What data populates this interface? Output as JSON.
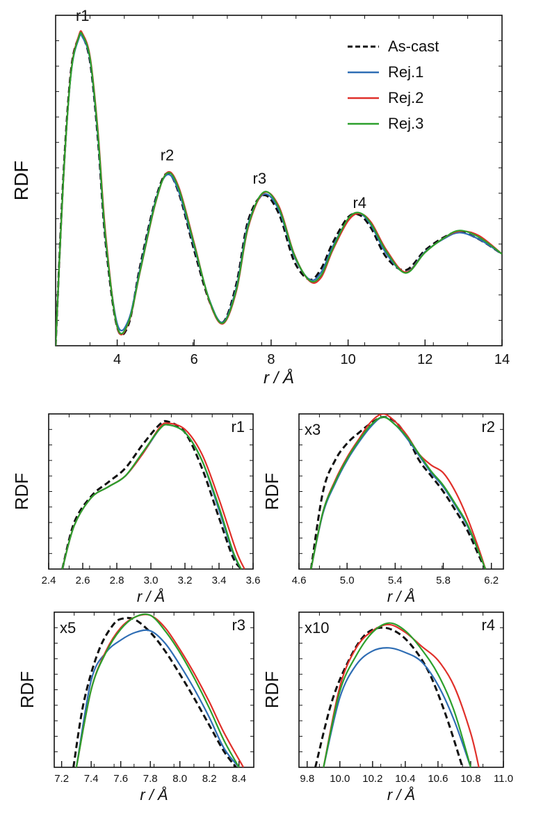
{
  "chart_data": [
    {
      "panel": "main",
      "type": "line",
      "xlabel": "r / Å",
      "ylabel": "RDF",
      "xlim": [
        2.4,
        14.0
      ],
      "ylim": [
        -0.3,
        4.2
      ],
      "x_ticks": [
        4,
        6,
        8,
        10,
        12,
        14
      ],
      "legend": {
        "position": "top-right",
        "entries": [
          "As-cast",
          "Rej.1",
          "Rej.2",
          "Rej.3"
        ]
      },
      "peak_labels": [
        {
          "text": "r1",
          "x": 3.1,
          "y": 4.05
        },
        {
          "text": "r2",
          "x": 5.3,
          "y": 2.15
        },
        {
          "text": "r3",
          "x": 7.7,
          "y": 1.83
        },
        {
          "text": "r4",
          "x": 10.3,
          "y": 1.5
        }
      ],
      "series": [
        {
          "name": "As-cast",
          "color": "#111111",
          "dashed": true,
          "x": [
            2.4,
            2.6,
            2.8,
            3.0,
            3.1,
            3.3,
            3.5,
            3.7,
            4.0,
            4.3,
            4.6,
            5.0,
            5.3,
            5.6,
            6.0,
            6.4,
            6.75,
            7.1,
            7.4,
            7.8,
            8.2,
            8.6,
            9.0,
            9.3,
            9.6,
            10.0,
            10.3,
            10.6,
            11.0,
            11.5,
            12.0,
            12.5,
            12.9,
            13.4,
            14.0
          ],
          "y": [
            -0.3,
            2.0,
            3.45,
            3.9,
            3.92,
            3.55,
            2.5,
            1.1,
            -0.05,
            0.0,
            0.8,
            1.7,
            2.05,
            1.78,
            1.0,
            0.3,
            0.02,
            0.55,
            1.4,
            1.75,
            1.5,
            0.85,
            0.6,
            0.75,
            1.1,
            1.45,
            1.48,
            1.3,
            0.9,
            0.73,
            1.0,
            1.18,
            1.25,
            1.15,
            0.95
          ]
        },
        {
          "name": "Rej.1",
          "color": "#2e6db4",
          "x": [
            2.4,
            2.6,
            2.8,
            3.0,
            3.1,
            3.3,
            3.5,
            3.7,
            4.0,
            4.3,
            4.6,
            5.0,
            5.3,
            5.6,
            6.0,
            6.4,
            6.75,
            7.1,
            7.4,
            7.8,
            8.2,
            8.6,
            9.0,
            9.3,
            9.6,
            10.0,
            10.3,
            10.6,
            11.0,
            11.5,
            12.0,
            12.5,
            12.9,
            13.4,
            14.0
          ],
          "y": [
            -0.3,
            1.95,
            3.4,
            3.88,
            3.9,
            3.58,
            2.55,
            1.15,
            0.0,
            0.06,
            0.76,
            1.68,
            2.03,
            1.8,
            1.05,
            0.32,
            0.02,
            0.5,
            1.35,
            1.76,
            1.55,
            0.92,
            0.6,
            0.7,
            1.05,
            1.42,
            1.5,
            1.34,
            0.95,
            0.7,
            0.98,
            1.16,
            1.24,
            1.15,
            0.95
          ]
        },
        {
          "name": "Rej.2",
          "color": "#e0302a",
          "x": [
            2.4,
            2.6,
            2.8,
            3.0,
            3.1,
            3.3,
            3.5,
            3.7,
            4.0,
            4.3,
            4.6,
            5.0,
            5.3,
            5.6,
            6.0,
            6.4,
            6.75,
            7.1,
            7.4,
            7.8,
            8.2,
            8.6,
            9.0,
            9.3,
            9.6,
            10.0,
            10.3,
            10.6,
            11.0,
            11.5,
            12.0,
            12.5,
            12.9,
            13.4,
            14.0
          ],
          "y": [
            -0.3,
            1.95,
            3.42,
            3.92,
            3.95,
            3.62,
            2.62,
            1.22,
            -0.05,
            0.02,
            0.72,
            1.65,
            2.06,
            1.86,
            1.1,
            0.3,
            0.0,
            0.45,
            1.3,
            1.78,
            1.6,
            0.95,
            0.58,
            0.63,
            1.0,
            1.4,
            1.5,
            1.38,
            1.0,
            0.7,
            0.97,
            1.17,
            1.26,
            1.2,
            0.95
          ]
        },
        {
          "name": "Rej.3",
          "color": "#2ca02c",
          "x": [
            2.4,
            2.6,
            2.8,
            3.0,
            3.1,
            3.3,
            3.5,
            3.7,
            4.0,
            4.3,
            4.6,
            5.0,
            5.3,
            5.6,
            6.0,
            6.4,
            6.75,
            7.1,
            7.4,
            7.8,
            8.2,
            8.6,
            9.0,
            9.3,
            9.6,
            10.0,
            10.3,
            10.6,
            11.0,
            11.5,
            12.0,
            12.5,
            12.9,
            13.4,
            14.0
          ],
          "y": [
            -0.3,
            1.96,
            3.41,
            3.9,
            3.93,
            3.6,
            2.58,
            1.17,
            -0.04,
            0.03,
            0.73,
            1.66,
            2.05,
            1.84,
            1.08,
            0.31,
            0.01,
            0.47,
            1.32,
            1.79,
            1.58,
            0.94,
            0.59,
            0.66,
            1.02,
            1.43,
            1.51,
            1.36,
            0.98,
            0.69,
            0.97,
            1.17,
            1.27,
            1.18,
            0.95
          ]
        }
      ]
    },
    {
      "panel": "r1",
      "type": "line",
      "label": "r1",
      "xlabel": "r / Å",
      "ylabel": "RDF",
      "xlim": [
        2.4,
        3.6
      ],
      "ylim": [
        0,
        1
      ],
      "x_ticks": [
        "2.4",
        "2.6",
        "2.8",
        "3.0",
        "3.2",
        "3.4",
        "3.6"
      ],
      "series": [
        {
          "name": "As-cast",
          "color": "#111111",
          "dashed": true,
          "x": [
            2.48,
            2.55,
            2.65,
            2.75,
            2.85,
            2.95,
            3.05,
            3.1,
            3.2,
            3.3,
            3.4,
            3.48,
            3.53
          ],
          "y": [
            0.0,
            0.3,
            0.47,
            0.56,
            0.65,
            0.8,
            0.93,
            0.95,
            0.88,
            0.65,
            0.33,
            0.08,
            0.0
          ]
        },
        {
          "name": "Rej.1",
          "color": "#2e6db4",
          "x": [
            2.48,
            2.55,
            2.65,
            2.75,
            2.85,
            2.95,
            3.05,
            3.1,
            3.2,
            3.3,
            3.4,
            3.48,
            3.53
          ],
          "y": [
            0.0,
            0.28,
            0.46,
            0.53,
            0.6,
            0.74,
            0.9,
            0.93,
            0.88,
            0.7,
            0.38,
            0.11,
            0.0
          ]
        },
        {
          "name": "Rej.2",
          "color": "#e0302a",
          "x": [
            2.48,
            2.55,
            2.65,
            2.75,
            2.85,
            2.95,
            3.05,
            3.1,
            3.2,
            3.3,
            3.4,
            3.5,
            3.55
          ],
          "y": [
            0.0,
            0.28,
            0.46,
            0.53,
            0.6,
            0.74,
            0.91,
            0.94,
            0.9,
            0.74,
            0.45,
            0.12,
            0.0
          ]
        },
        {
          "name": "Rej.3",
          "color": "#2ca02c",
          "x": [
            2.48,
            2.55,
            2.65,
            2.75,
            2.85,
            2.95,
            3.05,
            3.1,
            3.2,
            3.3,
            3.4,
            3.48,
            3.53
          ],
          "y": [
            0.0,
            0.28,
            0.46,
            0.53,
            0.6,
            0.75,
            0.9,
            0.93,
            0.88,
            0.7,
            0.4,
            0.12,
            0.0
          ]
        }
      ]
    },
    {
      "panel": "r2",
      "type": "line",
      "label": "r2",
      "multiplier": "x3",
      "xlabel": "r / Å",
      "ylabel": "RDF",
      "xlim": [
        4.6,
        6.3
      ],
      "ylim": [
        0,
        1
      ],
      "x_ticks": [
        "4.6",
        "5.0",
        "5.4",
        "5.8",
        "6.2"
      ],
      "series": [
        {
          "name": "As-cast",
          "color": "#111111",
          "dashed": true,
          "x": [
            4.7,
            4.8,
            4.9,
            5.0,
            5.1,
            5.2,
            5.3,
            5.4,
            5.5,
            5.6,
            5.7,
            5.8,
            5.9,
            6.0,
            6.1,
            6.15
          ],
          "y": [
            0.0,
            0.5,
            0.7,
            0.81,
            0.88,
            0.94,
            0.98,
            0.95,
            0.85,
            0.7,
            0.6,
            0.5,
            0.38,
            0.25,
            0.08,
            0.0
          ]
        },
        {
          "name": "Rej.1",
          "color": "#2e6db4",
          "x": [
            4.7,
            4.8,
            4.9,
            5.0,
            5.1,
            5.2,
            5.3,
            5.4,
            5.5,
            5.6,
            5.7,
            5.8,
            5.9,
            6.0,
            6.1,
            6.15
          ],
          "y": [
            0.0,
            0.36,
            0.55,
            0.7,
            0.82,
            0.92,
            0.98,
            0.93,
            0.84,
            0.73,
            0.62,
            0.53,
            0.41,
            0.28,
            0.1,
            0.0
          ]
        },
        {
          "name": "Rej.2",
          "color": "#e0302a",
          "x": [
            4.7,
            4.8,
            4.9,
            5.0,
            5.1,
            5.2,
            5.3,
            5.4,
            5.5,
            5.6,
            5.7,
            5.8,
            5.9,
            6.0,
            6.1,
            6.15
          ],
          "y": [
            0.0,
            0.37,
            0.57,
            0.72,
            0.84,
            0.95,
            1.0,
            0.95,
            0.86,
            0.74,
            0.67,
            0.62,
            0.5,
            0.33,
            0.12,
            0.0
          ]
        },
        {
          "name": "Rej.3",
          "color": "#2ca02c",
          "x": [
            4.7,
            4.8,
            4.9,
            5.0,
            5.1,
            5.2,
            5.3,
            5.4,
            5.5,
            5.6,
            5.7,
            5.8,
            5.9,
            6.0,
            6.1,
            6.15
          ],
          "y": [
            0.0,
            0.37,
            0.56,
            0.71,
            0.83,
            0.93,
            0.98,
            0.93,
            0.85,
            0.74,
            0.63,
            0.54,
            0.42,
            0.29,
            0.1,
            0.0
          ]
        }
      ]
    },
    {
      "panel": "r3",
      "type": "line",
      "label": "r3",
      "multiplier": "x5",
      "xlabel": "r / Å",
      "ylabel": "RDF",
      "xlim": [
        7.15,
        8.5
      ],
      "ylim": [
        0,
        1
      ],
      "x_ticks": [
        "7.2",
        "7.4",
        "7.6",
        "7.8",
        "8.0",
        "8.2",
        "8.4"
      ],
      "series": [
        {
          "name": "As-cast",
          "color": "#111111",
          "dashed": true,
          "x": [
            7.28,
            7.35,
            7.45,
            7.55,
            7.62,
            7.7,
            7.8,
            7.9,
            8.0,
            8.1,
            8.2,
            8.3,
            8.38
          ],
          "y": [
            0.0,
            0.42,
            0.75,
            0.92,
            0.96,
            0.95,
            0.87,
            0.75,
            0.6,
            0.44,
            0.27,
            0.1,
            0.0
          ]
        },
        {
          "name": "Rej.1",
          "color": "#2e6db4",
          "x": [
            7.3,
            7.4,
            7.5,
            7.6,
            7.7,
            7.8,
            7.9,
            8.0,
            8.1,
            8.2,
            8.3,
            8.4
          ],
          "y": [
            0.0,
            0.56,
            0.74,
            0.82,
            0.87,
            0.88,
            0.8,
            0.66,
            0.5,
            0.32,
            0.12,
            0.0
          ]
        },
        {
          "name": "Rej.2",
          "color": "#e0302a",
          "x": [
            7.3,
            7.4,
            7.5,
            7.6,
            7.7,
            7.8,
            7.9,
            8.0,
            8.1,
            8.2,
            8.3,
            8.43
          ],
          "y": [
            0.0,
            0.5,
            0.75,
            0.9,
            0.97,
            0.98,
            0.9,
            0.76,
            0.6,
            0.42,
            0.22,
            0.0
          ]
        },
        {
          "name": "Rej.3",
          "color": "#2ca02c",
          "x": [
            7.3,
            7.4,
            7.5,
            7.6,
            7.7,
            7.8,
            7.9,
            8.0,
            8.1,
            8.2,
            8.3,
            8.4
          ],
          "y": [
            0.0,
            0.5,
            0.74,
            0.89,
            0.97,
            0.98,
            0.88,
            0.74,
            0.57,
            0.38,
            0.17,
            0.0
          ]
        }
      ]
    },
    {
      "panel": "r4",
      "type": "line",
      "label": "r4",
      "multiplier": "x10",
      "xlabel": "r / Å",
      "ylabel": "RDF",
      "xlim": [
        9.75,
        11.0
      ],
      "ylim": [
        0,
        1
      ],
      "x_ticks": [
        "9.8",
        "10.0",
        "10.2",
        "10.4",
        "10.6",
        "10.8",
        "11.0"
      ],
      "series": [
        {
          "name": "As-cast",
          "color": "#111111",
          "dashed": true,
          "x": [
            9.85,
            9.95,
            10.05,
            10.15,
            10.25,
            10.35,
            10.45,
            10.55,
            10.65,
            10.75
          ],
          "y": [
            0.0,
            0.42,
            0.68,
            0.85,
            0.9,
            0.87,
            0.77,
            0.6,
            0.33,
            0.0
          ]
        },
        {
          "name": "Rej.1",
          "color": "#2e6db4",
          "x": [
            9.9,
            10.0,
            10.1,
            10.2,
            10.3,
            10.4,
            10.5,
            10.6,
            10.7,
            10.8
          ],
          "y": [
            0.0,
            0.45,
            0.66,
            0.75,
            0.77,
            0.74,
            0.68,
            0.53,
            0.3,
            0.0
          ]
        },
        {
          "name": "Rej.2",
          "color": "#e0302a",
          "x": [
            9.9,
            10.0,
            10.1,
            10.2,
            10.3,
            10.4,
            10.5,
            10.6,
            10.7,
            10.8,
            10.85
          ],
          "y": [
            0.0,
            0.52,
            0.77,
            0.88,
            0.92,
            0.87,
            0.78,
            0.69,
            0.52,
            0.22,
            0.0
          ]
        },
        {
          "name": "Rej.3",
          "color": "#2ca02c",
          "x": [
            9.9,
            10.0,
            10.1,
            10.2,
            10.3,
            10.4,
            10.5,
            10.6,
            10.7,
            10.8
          ],
          "y": [
            0.0,
            0.49,
            0.72,
            0.87,
            0.93,
            0.88,
            0.76,
            0.6,
            0.36,
            0.0
          ]
        }
      ]
    }
  ]
}
